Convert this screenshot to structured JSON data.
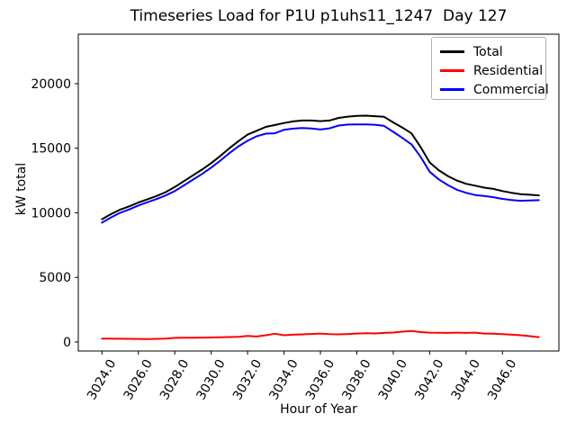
{
  "chart_data": {
    "type": "line",
    "title": "Timeseries Load for P1U p1uhs11_1247  Day 127",
    "xlabel": "Hour of Year",
    "ylabel": "kW total",
    "xlim": [
      3022.7,
      3049.1
    ],
    "ylim": [
      -700,
      23830
    ],
    "x_ticks": [
      3024,
      3026,
      3028,
      3030,
      3032,
      3034,
      3036,
      3038,
      3040,
      3042,
      3044,
      3046
    ],
    "x_tick_labels": [
      "3024.0",
      "3026.0",
      "3028.0",
      "3030.0",
      "3032.0",
      "3034.0",
      "3036.0",
      "3038.0",
      "3040.0",
      "3042.0",
      "3044.0",
      "3046.0"
    ],
    "y_ticks": [
      0,
      5000,
      10000,
      15000,
      20000
    ],
    "y_tick_labels": [
      "0",
      "5000",
      "10000",
      "15000",
      "20000"
    ],
    "grid": false,
    "legend": {
      "position": "upper right"
    },
    "axis_color": "#000000",
    "background_color": "#ffffff",
    "x": [
      3024,
      3024.5,
      3025,
      3025.5,
      3026,
      3026.5,
      3027,
      3027.5,
      3028,
      3028.5,
      3029,
      3029.5,
      3030,
      3030.5,
      3031,
      3031.5,
      3032,
      3032.5,
      3033,
      3033.5,
      3034,
      3034.5,
      3035,
      3035.5,
      3036,
      3036.5,
      3037,
      3037.5,
      3038,
      3038.5,
      3039,
      3039.5,
      3040,
      3040.5,
      3041,
      3041.5,
      3042,
      3042.5,
      3043,
      3043.5,
      3044,
      3044.5,
      3045,
      3045.5,
      3046,
      3046.5,
      3047,
      3047.5,
      3048
    ],
    "series": [
      {
        "name": "Total",
        "color": "#000000",
        "values": [
          9500,
          9900,
          10250,
          10500,
          10800,
          11050,
          11300,
          11600,
          12000,
          12450,
          12900,
          13350,
          13850,
          14400,
          15000,
          15550,
          16050,
          16350,
          16650,
          16800,
          16950,
          17080,
          17150,
          17150,
          17100,
          17150,
          17350,
          17450,
          17500,
          17520,
          17480,
          17430,
          17000,
          16600,
          16150,
          15100,
          13900,
          13300,
          12850,
          12500,
          12250,
          12100,
          11950,
          11850,
          11680,
          11550,
          11450,
          11400,
          11350
        ]
      },
      {
        "name": "Residential",
        "color": "#ff0000",
        "values": [
          260,
          255,
          245,
          240,
          235,
          230,
          240,
          260,
          320,
          330,
          330,
          340,
          345,
          360,
          380,
          400,
          470,
          420,
          520,
          640,
          520,
          560,
          590,
          620,
          650,
          610,
          590,
          620,
          650,
          670,
          660,
          700,
          730,
          800,
          850,
          760,
          720,
          710,
          700,
          720,
          700,
          720,
          650,
          640,
          600,
          560,
          520,
          450,
          370
        ]
      },
      {
        "name": "Commercial",
        "color": "#0000ff",
        "values": [
          9240,
          9645,
          10005,
          10260,
          10565,
          10820,
          11060,
          11340,
          11680,
          12120,
          12570,
          13010,
          13505,
          14040,
          14620,
          15150,
          15580,
          15930,
          16130,
          16160,
          16430,
          16520,
          16560,
          16530,
          16450,
          16540,
          16760,
          16830,
          16850,
          16850,
          16820,
          16730,
          16270,
          15800,
          15300,
          14340,
          13180,
          12590,
          12150,
          11780,
          11550,
          11380,
          11300,
          11210,
          11080,
          10990,
          10930,
          10950,
          10980
        ]
      }
    ]
  }
}
